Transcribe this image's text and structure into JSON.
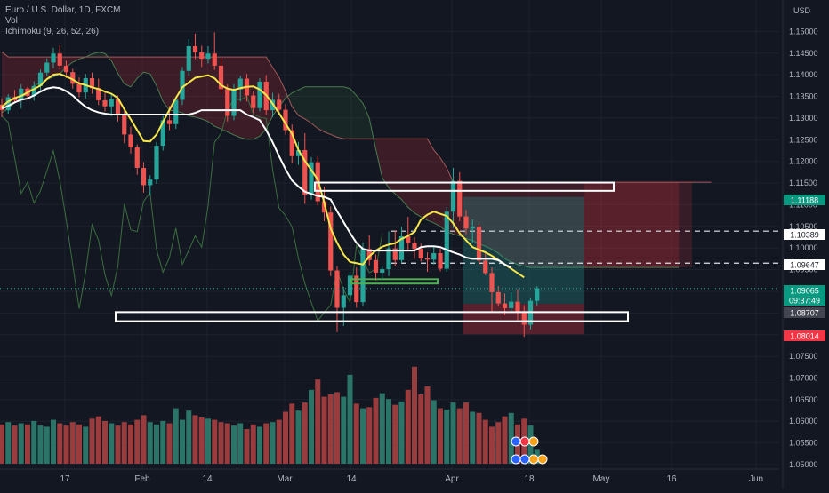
{
  "legend": {
    "symbol_line": "Euro / U.S. Dollar, 1D, FXCM",
    "vol_line": "Vol",
    "ichimoku_line": "Ichimoku (9, 26, 52, 26)"
  },
  "chart_data": {
    "type": "candlestick",
    "symbol": "Euro / U.S. Dollar",
    "interval": "1D",
    "source": "FXCM",
    "currency": "USD",
    "ylim": [
      1.05,
      1.155
    ],
    "y_ticks": [
      "1.15000",
      "1.14500",
      "1.14000",
      "1.13500",
      "1.13000",
      "1.12500",
      "1.12000",
      "1.11500",
      "1.11000",
      "1.10500",
      "1.10000",
      "1.09500",
      "1.09000",
      "1.08500",
      "1.08000",
      "1.07500",
      "1.07000",
      "1.06500",
      "1.06000",
      "1.05500",
      "1.05000"
    ],
    "x_ticks": [
      "17",
      "Feb",
      "14",
      "Mar",
      "14",
      "Apr",
      "18",
      "May",
      "16",
      "Jun"
    ],
    "price_labels": [
      {
        "text": "1.11188",
        "bg": "#089981",
        "fg": "#ffffff"
      },
      {
        "text": "1.10389",
        "bg": "#ffffff",
        "fg": "#131722"
      },
      {
        "text": "1.09647",
        "bg": "#ffffff",
        "fg": "#131722"
      },
      {
        "text": "1.09065",
        "bg": "#089981",
        "fg": "#ffffff"
      },
      {
        "text": "09:37:49",
        "bg": "#089981",
        "fg": "#ffffff"
      },
      {
        "text": "1.08707",
        "bg": "#434651",
        "fg": "#ffffff"
      },
      {
        "text": "1.08014",
        "bg": "#f23645",
        "fg": "#ffffff"
      }
    ],
    "candles": [
      [
        1.1331,
        1.1346,
        1.1302,
        1.1318
      ],
      [
        1.1318,
        1.1355,
        1.131,
        1.1348
      ],
      [
        1.1348,
        1.1365,
        1.1335,
        1.1341
      ],
      [
        1.1341,
        1.1378,
        1.1322,
        1.1368
      ],
      [
        1.1368,
        1.1372,
        1.1342,
        1.1351
      ],
      [
        1.1351,
        1.1385,
        1.134,
        1.1374
      ],
      [
        1.1374,
        1.1412,
        1.1362,
        1.1405
      ],
      [
        1.1405,
        1.1438,
        1.1396,
        1.1428
      ],
      [
        1.1428,
        1.1462,
        1.1415,
        1.1449
      ],
      [
        1.1449,
        1.1468,
        1.1412,
        1.1421
      ],
      [
        1.1421,
        1.1432,
        1.1392,
        1.1406
      ],
      [
        1.1406,
        1.1414,
        1.1368,
        1.1379
      ],
      [
        1.1379,
        1.1394,
        1.1348,
        1.1359
      ],
      [
        1.1359,
        1.1402,
        1.1345,
        1.1392
      ],
      [
        1.1392,
        1.1405,
        1.1356,
        1.1369
      ],
      [
        1.1369,
        1.1391,
        1.133,
        1.1341
      ],
      [
        1.1341,
        1.1362,
        1.1315,
        1.1327
      ],
      [
        1.1327,
        1.1358,
        1.1304,
        1.1343
      ],
      [
        1.1343,
        1.1352,
        1.1292,
        1.1308
      ],
      [
        1.1308,
        1.1324,
        1.1242,
        1.1262
      ],
      [
        1.1262,
        1.128,
        1.1218,
        1.1232
      ],
      [
        1.1232,
        1.1239,
        1.1169,
        1.1185
      ],
      [
        1.1185,
        1.1198,
        1.1128,
        1.1145
      ],
      [
        1.1145,
        1.1168,
        1.1121,
        1.1158
      ],
      [
        1.1158,
        1.1245,
        1.1148,
        1.1236
      ],
      [
        1.1236,
        1.1305,
        1.1225,
        1.1295
      ],
      [
        1.1295,
        1.1328,
        1.1272,
        1.1286
      ],
      [
        1.1286,
        1.135,
        1.1275,
        1.1342
      ],
      [
        1.1342,
        1.1418,
        1.133,
        1.1409
      ],
      [
        1.1409,
        1.1482,
        1.1398,
        1.1466
      ],
      [
        1.1466,
        1.1495,
        1.1436,
        1.1452
      ],
      [
        1.1452,
        1.1467,
        1.1418,
        1.1437
      ],
      [
        1.1437,
        1.1466,
        1.1426,
        1.1449
      ],
      [
        1.1449,
        1.1498,
        1.1411,
        1.1421
      ],
      [
        1.1421,
        1.1438,
        1.1356,
        1.1367
      ],
      [
        1.1367,
        1.1378,
        1.1292,
        1.1305
      ],
      [
        1.1305,
        1.1378,
        1.1295,
        1.1366
      ],
      [
        1.1366,
        1.1398,
        1.1338,
        1.1391
      ],
      [
        1.1391,
        1.1402,
        1.1338,
        1.1352
      ],
      [
        1.1352,
        1.1362,
        1.1312,
        1.1323
      ],
      [
        1.1323,
        1.1392,
        1.1315,
        1.1384
      ],
      [
        1.1384,
        1.1399,
        1.1308,
        1.1318
      ],
      [
        1.1318,
        1.1358,
        1.1302,
        1.1342
      ],
      [
        1.1342,
        1.1356,
        1.1308,
        1.1319
      ],
      [
        1.1319,
        1.1332,
        1.1262,
        1.1272
      ],
      [
        1.1272,
        1.1285,
        1.1195,
        1.1212
      ],
      [
        1.1212,
        1.1245,
        1.1192,
        1.1226
      ],
      [
        1.1226,
        1.1265,
        1.1102,
        1.1123
      ],
      [
        1.1123,
        1.121,
        1.1112,
        1.1198
      ],
      [
        1.1198,
        1.1212,
        1.1098,
        1.1108
      ],
      [
        1.1108,
        1.1142,
        1.1062,
        1.1082
      ],
      [
        1.1082,
        1.1096,
        1.0935,
        1.0948
      ],
      [
        1.0948,
        1.0958,
        1.0806,
        1.0862
      ],
      [
        1.0862,
        1.091,
        1.082,
        1.0891
      ],
      [
        1.0891,
        1.0945,
        1.0885,
        1.0936
      ],
      [
        1.0936,
        1.0955,
        1.0862,
        1.0875
      ],
      [
        1.0875,
        1.1013,
        1.0866,
        1.0998
      ],
      [
        1.0998,
        1.1029,
        1.096,
        1.0972
      ],
      [
        1.0972,
        1.0985,
        1.0925,
        1.0943
      ],
      [
        1.0943,
        1.096,
        1.0925,
        1.0951
      ],
      [
        1.0951,
        1.1038,
        1.0935,
        1.0999
      ],
      [
        1.0999,
        1.1041,
        1.0958,
        1.0972
      ],
      [
        1.0972,
        1.1049,
        1.0965,
        1.1027
      ],
      [
        1.1027,
        1.1072,
        1.0995,
        1.1012
      ],
      [
        1.1012,
        1.1025,
        1.0975,
        1.0998
      ],
      [
        1.0998,
        1.101,
        1.0969,
        1.0976
      ],
      [
        1.0976,
        1.099,
        1.0945,
        1.0973
      ],
      [
        1.0973,
        1.1005,
        1.0962,
        1.0988
      ],
      [
        1.0988,
        1.0998,
        1.0946,
        1.0952
      ],
      [
        1.0952,
        1.1095,
        1.0945,
        1.1084
      ],
      [
        1.1084,
        1.1185,
        1.1046,
        1.1155
      ],
      [
        1.1155,
        1.1175,
        1.1062,
        1.1073
      ],
      [
        1.1073,
        1.1088,
        1.1032,
        1.1045
      ],
      [
        1.1045,
        1.1066,
        1.1012,
        1.1049
      ],
      [
        1.1049,
        1.1056,
        1.0962,
        1.0971
      ],
      [
        1.0971,
        1.099,
        1.0937,
        1.0942
      ],
      [
        1.0942,
        1.0955,
        1.0852,
        1.0898
      ],
      [
        1.0898,
        1.0912,
        1.0865,
        1.0872
      ],
      [
        1.0872,
        1.0895,
        1.0845,
        1.0861
      ],
      [
        1.0861,
        1.0898,
        1.0851,
        1.0876
      ],
      [
        1.0876,
        1.0905,
        1.0833,
        1.0852
      ],
      [
        1.0852,
        1.0868,
        1.0795,
        1.0823
      ],
      [
        1.0823,
        1.0884,
        1.0812,
        1.0878
      ],
      [
        1.0878,
        1.0912,
        1.0867,
        1.0907
      ]
    ],
    "volumes": [
      0.34,
      0.36,
      0.33,
      0.35,
      0.34,
      0.37,
      0.33,
      0.32,
      0.38,
      0.35,
      0.33,
      0.36,
      0.34,
      0.32,
      0.39,
      0.41,
      0.37,
      0.35,
      0.33,
      0.36,
      0.34,
      0.38,
      0.42,
      0.36,
      0.34,
      0.37,
      0.35,
      0.48,
      0.38,
      0.46,
      0.42,
      0.4,
      0.39,
      0.38,
      0.36,
      0.35,
      0.33,
      0.35,
      0.3,
      0.34,
      0.32,
      0.35,
      0.36,
      0.38,
      0.45,
      0.52,
      0.46,
      0.53,
      0.64,
      0.73,
      0.58,
      0.6,
      0.62,
      0.58,
      0.77,
      0.52,
      0.48,
      0.49,
      0.57,
      0.61,
      0.56,
      0.51,
      0.54,
      0.64,
      0.84,
      0.6,
      0.67,
      0.55,
      0.48,
      0.47,
      0.53,
      0.48,
      0.53,
      0.45,
      0.44,
      0.38,
      0.32,
      0.36,
      0.41,
      0.44,
      0.34,
      0.39,
      0.33,
      0.12
    ],
    "overlays": {
      "tenkan": [
        1.1326,
        1.1338,
        1.1346,
        1.1351,
        1.1359,
        1.1367,
        1.1375,
        1.139,
        1.14,
        1.1402,
        1.1396,
        1.1389,
        1.138,
        1.1376,
        1.1371,
        1.1367,
        1.1361,
        1.1356,
        1.1346,
        1.132,
        1.1297,
        1.1272,
        1.1247,
        1.1246,
        1.1262,
        1.1291,
        1.1319,
        1.1346,
        1.1371,
        1.1382,
        1.1393,
        1.1396,
        1.1399,
        1.1392,
        1.1376,
        1.1368,
        1.1365,
        1.1369,
        1.1372,
        1.1373,
        1.1366,
        1.1353,
        1.1333,
        1.1311,
        1.1287,
        1.1264,
        1.1226,
        1.1201,
        1.118,
        1.1158,
        1.1105,
        1.1045,
        1.1012,
        1.0985,
        1.0968,
        1.0965,
        1.0962,
        1.0981,
        1.0994,
        1.1003,
        1.1008,
        1.1011,
        1.1021,
        1.1028,
        1.1037,
        1.1066,
        1.1077,
        1.1084,
        1.1079,
        1.1074,
        1.1057,
        1.1034,
        1.1018,
        1.1002,
        1.0996,
        1.099,
        1.0982,
        1.0972,
        1.0962,
        1.0952,
        1.0942,
        1.0932
      ],
      "kijun": [
        1.1322,
        1.1328,
        1.1336,
        1.1342,
        1.1345,
        1.1352,
        1.1361,
        1.1368,
        1.1371,
        1.1369,
        1.1362,
        1.1352,
        1.1338,
        1.1326,
        1.1318,
        1.1313,
        1.131,
        1.1308,
        1.1308,
        1.1308,
        1.1308,
        1.1308,
        1.1308,
        1.1308,
        1.1308,
        1.1308,
        1.1308,
        1.1308,
        1.1308,
        1.1308,
        1.1312,
        1.1318,
        1.1318,
        1.1318,
        1.1318,
        1.1318,
        1.1318,
        1.1318,
        1.1308,
        1.1302,
        1.1295,
        1.1272,
        1.1244,
        1.1212,
        1.1182,
        1.1156,
        1.1142,
        1.113,
        1.1125,
        1.112,
        1.1118,
        1.1112,
        1.1085,
        1.106,
        1.1035,
        1.1012,
        1.0998,
        1.0994,
        1.0994,
        1.0994,
        1.0994,
        1.0994,
        1.0994,
        1.0994,
        1.0994,
        1.1002,
        1.1004,
        1.1004,
        1.1002,
        1.0996,
        1.099,
        1.0985,
        1.0978,
        1.0975,
        1.0975,
        1.0975,
        1.0975,
        1.0972,
        1.0962,
        1.0955
      ],
      "chikou_start": 0,
      "chikou": [
        1.1305,
        1.129,
        1.1208,
        1.1126,
        1.1152,
        1.1104,
        1.1132,
        1.1178,
        1.1224,
        1.1156,
        1.1064,
        1.0962,
        1.086,
        1.0943,
        1.1054,
        1.1018,
        1.0938,
        1.089,
        1.0958,
        1.1102,
        1.1042,
        1.1038,
        1.1108,
        1.1128,
        1.0996,
        1.0944,
        1.0978,
        1.1046,
        1.0962,
        1.0995,
        1.1028,
        1.1002,
        1.1098,
        1.1244,
        1.1264,
        1.1318,
        1.1345,
        1.1342,
        1.135,
        1.1309,
        1.1302,
        1.1299,
        1.1181,
        1.1092,
        1.1075,
        1.1049,
        1.0976,
        1.0918,
        1.0874,
        1.0832,
        1.0851,
        1.0868,
        1.0948,
        1.0904,
        1.0875,
        1.1006,
        1.0971,
        1.0943,
        1.0951,
        1.1032
      ],
      "span_a": [
        1.1312,
        1.1322,
        1.1335,
        1.1346,
        1.1358,
        1.1374,
        1.1382,
        1.1389,
        1.1395,
        1.1402,
        1.1418,
        1.1429,
        1.1436,
        1.1441,
        1.1448,
        1.1452,
        1.1449,
        1.1432,
        1.1403,
        1.1379,
        1.1372,
        1.1392,
        1.1406,
        1.1402,
        1.1374,
        1.1338,
        1.1318,
        1.1316,
        1.1312,
        1.1305,
        1.1302,
        1.1298,
        1.1292,
        1.1281,
        1.1275,
        1.1268,
        1.1261,
        1.1255,
        1.1251,
        1.1251,
        1.1258,
        1.1275,
        1.1305,
        1.1326,
        1.1346,
        1.1358,
        1.1365,
        1.1372,
        1.1372,
        1.1372,
        1.1372,
        1.1372,
        1.1372,
        1.1372,
        1.1368,
        1.1352,
        1.1334,
        1.1299,
        1.1228,
        1.1162,
        1.1139,
        1.1125,
        1.1112,
        1.1094,
        1.1081,
        1.1072,
        1.1064,
        1.1058,
        1.105,
        1.1038,
        1.1032,
        1.1028,
        1.1022,
        1.1017,
        1.101,
        1.1004,
        1.0997,
        1.0988,
        1.0975,
        1.0968,
        1.0962,
        1.0958,
        1.0955,
        1.0955,
        1.0955,
        1.0955,
        1.0955,
        1.0955,
        1.0955,
        1.0955,
        1.0955,
        1.0955,
        1.0955,
        1.0955,
        1.0955,
        1.0955,
        1.0955,
        1.0955,
        1.0955,
        1.0955,
        1.0955,
        1.0955,
        1.0955,
        1.0955,
        1.0955,
        1.0955
      ],
      "span_b": [
        1.1453,
        1.1441,
        1.1441,
        1.1441,
        1.1441,
        1.1441,
        1.1441,
        1.1441,
        1.1441,
        1.1441,
        1.1441,
        1.1441,
        1.1441,
        1.1441,
        1.1441,
        1.1441,
        1.1441,
        1.1441,
        1.1441,
        1.1441,
        1.1441,
        1.1441,
        1.1441,
        1.1441,
        1.1441,
        1.1441,
        1.1441,
        1.1441,
        1.1441,
        1.1441,
        1.1441,
        1.1441,
        1.1441,
        1.1441,
        1.1441,
        1.1441,
        1.1441,
        1.1441,
        1.1441,
        1.1441,
        1.1441,
        1.1441,
        1.1417,
        1.1394,
        1.1362,
        1.1326,
        1.1306,
        1.1298,
        1.1288,
        1.1276,
        1.1268,
        1.1262,
        1.1256,
        1.1252,
        1.1252,
        1.1252,
        1.1252,
        1.1252,
        1.1252,
        1.1252,
        1.1252,
        1.1252,
        1.1252,
        1.1252,
        1.1252,
        1.1252,
        1.1252,
        1.1226,
        1.1208,
        1.1185,
        1.1152,
        1.1152,
        1.1152,
        1.1152,
        1.1152,
        1.1152,
        1.1152,
        1.1152,
        1.1152,
        1.1152,
        1.1152,
        1.1152,
        1.1152,
        1.1152,
        1.1152,
        1.1152,
        1.1152,
        1.1152,
        1.1152,
        1.1152,
        1.1152,
        1.1152,
        1.1152,
        1.1152,
        1.1152,
        1.1152,
        1.1152,
        1.1152,
        1.1152,
        1.1152,
        1.1152,
        1.1152,
        1.1152,
        1.1152,
        1.1152,
        1.1152,
        1.1152,
        1.1152,
        1.1152,
        1.1152,
        1.1152
      ]
    },
    "zones": [
      {
        "name": "resistance-zone",
        "from": 67.5,
        "to": 95.5,
        "top": 1.1151,
        "bottom": 1.1132
      },
      {
        "name": "support-zone",
        "from": 2.5,
        "to": 104.5,
        "top": 1.0852,
        "bottom": 1.0831
      },
      {
        "name": "small-green-box",
        "from": 37.5,
        "to": 62.5,
        "top": 1.0928,
        "bottom": 1.0918
      }
    ],
    "position": {
      "from": 71.5,
      "to": 87.5,
      "entry": 1.0871,
      "target": 1.1118,
      "stop": 1.0801
    },
    "dashed_levels": [
      1.1039,
      1.0965
    ],
    "spans_to_end": {
      "from": 74.5,
      "to": 108.5
    }
  },
  "colors": {
    "bg": "#131722",
    "up": "#26a69a",
    "down": "#ef5350",
    "vol_up": "#2a7468",
    "vol_down": "#9a3c3e",
    "tenkan": "#f7e64a",
    "kijun": "#ffffff",
    "chikou": "#3a6e3e",
    "span_a": "#4a7b4f",
    "span_b": "#a35a5a",
    "text": "#b2b5be",
    "grid": "#1e222d"
  }
}
